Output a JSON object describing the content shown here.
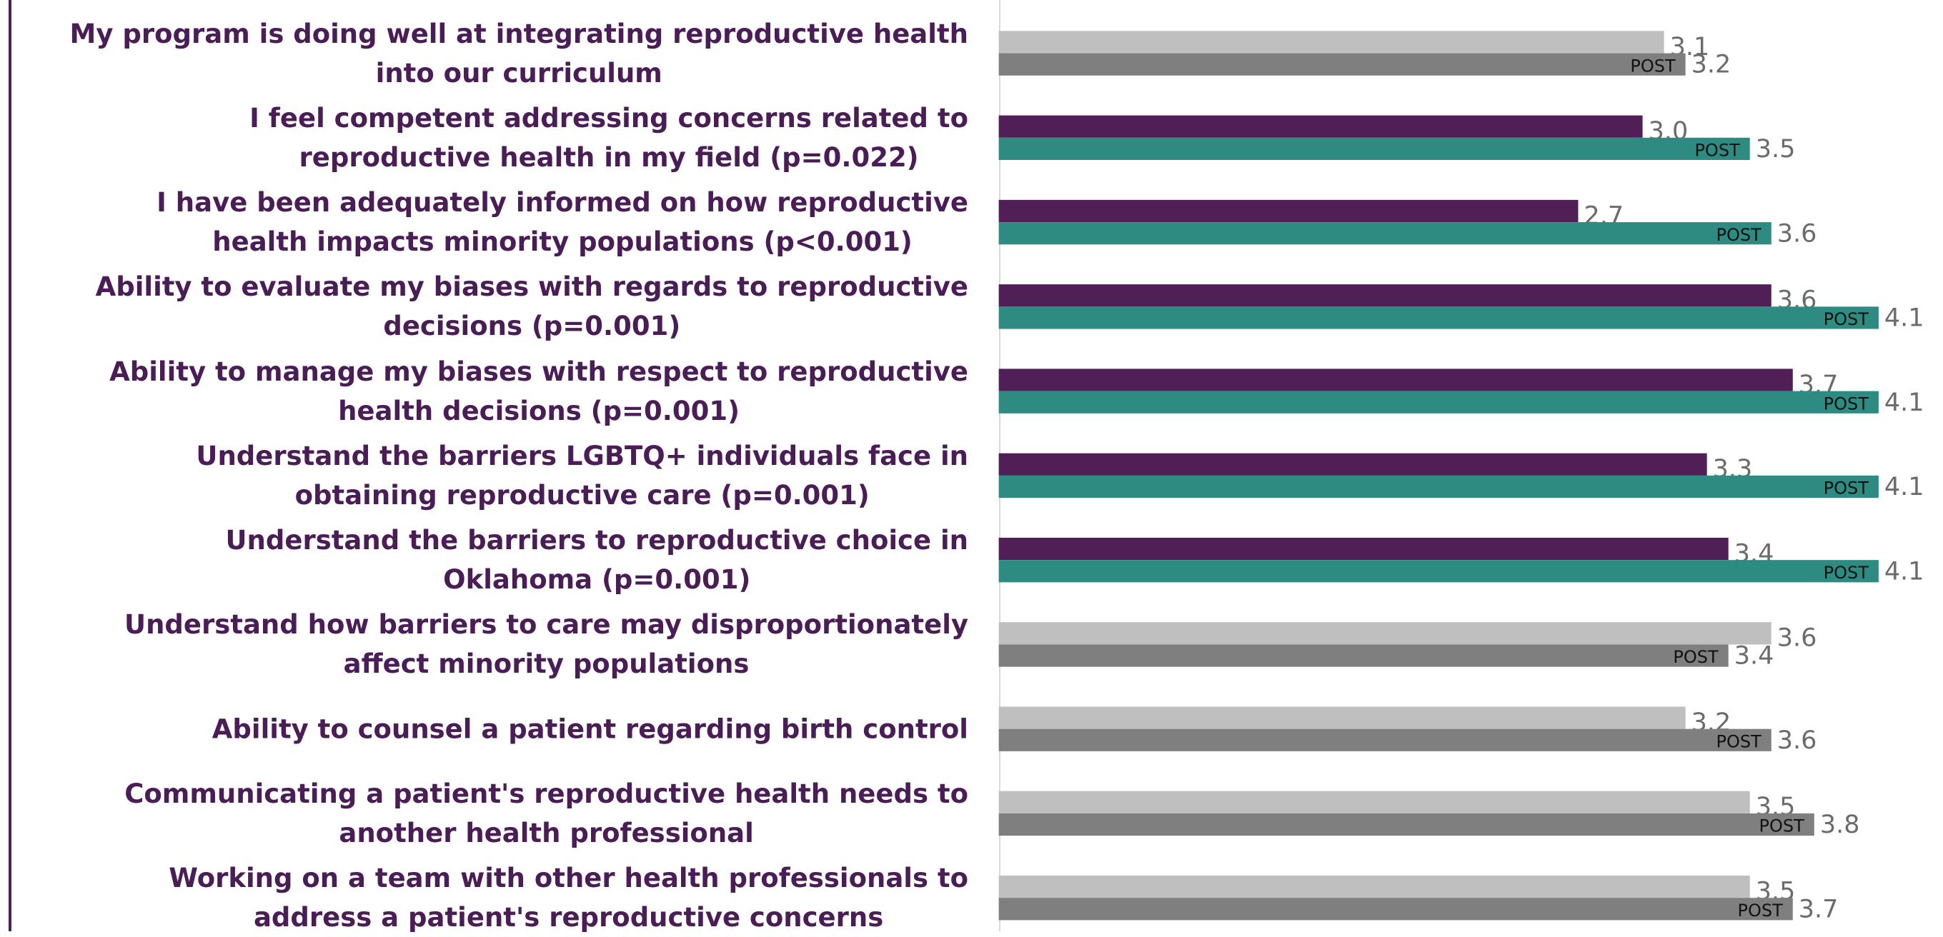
{
  "chart_data": {
    "type": "bar",
    "orientation": "horizontal",
    "categories": [
      "My program is doing well at integrating reproductive health\ninto our curriculum",
      "I feel competent addressing concerns related to\nreproductive health in my field (p=0.022)",
      "I have been adequately informed on how reproductive\nhealth impacts minority populations (p<0.001)",
      "Ability to evaluate my biases with regards to reproductive\ndecisions (p=0.001)",
      "Ability to manage my biases with respect to reproductive\nhealth decisions (p=0.001)",
      "Understand the barriers LGBTQ+ individuals face in\nobtaining reproductive care (p=0.001)",
      "Understand the barriers to reproductive choice in\nOklahoma (p=0.001)",
      "Understand how barriers to care may disproportionately\naffect minority populations",
      "Ability to counsel a patient regarding birth control",
      "Communicating a patient's reproductive health needs to\nanother health professional",
      "Working on a team with other health professionals to\naddress a patient's reproductive concerns"
    ],
    "series": [
      {
        "values": [
          3.1,
          3.0,
          2.7,
          3.6,
          3.7,
          3.3,
          3.4,
          3.6,
          3.2,
          3.5,
          3.5
        ],
        "value_labels": [
          "3.1",
          "3.0",
          "2.7",
          "3.6",
          "3.7",
          "3.3",
          "3.4",
          "3.6",
          "3.2",
          "3.5",
          "3.5"
        ],
        "colors": [
          "#bfbfbf",
          "#4f1f55",
          "#4f1f55",
          "#4f1f55",
          "#4f1f55",
          "#4f1f55",
          "#4f1f55",
          "#bfbfbf",
          "#bfbfbf",
          "#bfbfbf",
          "#bfbfbf"
        ]
      },
      {
        "name": "POST",
        "values": [
          3.2,
          3.5,
          3.6,
          4.1,
          4.1,
          4.1,
          4.1,
          3.4,
          3.6,
          3.8,
          3.7
        ],
        "colors": [
          "#7f7f7f",
          "#2e8b82",
          "#2e8b82",
          "#2e8b82",
          "#2e8b82",
          "#2e8b82",
          "#2e8b82",
          "#7f7f7f",
          "#7f7f7f",
          "#7f7f7f",
          "#7f7f7f"
        ]
      }
    ],
    "xlim": [
      0,
      4.4
    ]
  }
}
